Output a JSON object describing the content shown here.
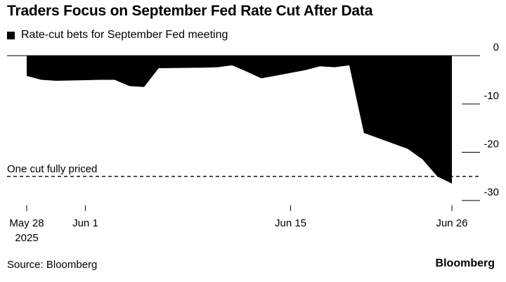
{
  "chart_data": {
    "type": "area",
    "title": "Traders Focus on September Fed Rate Cut After Data",
    "legend": "Rate-cut bets for September Fed meeting",
    "x_dates": [
      "2025-05-28",
      "2025-05-29",
      "2025-05-30",
      "2025-06-02",
      "2025-06-03",
      "2025-06-04",
      "2025-06-05",
      "2025-06-06",
      "2025-06-09",
      "2025-06-10",
      "2025-06-11",
      "2025-06-12",
      "2025-06-13",
      "2025-06-16",
      "2025-06-17",
      "2025-06-18",
      "2025-06-19",
      "2025-06-20",
      "2025-06-23",
      "2025-06-24",
      "2025-06-25",
      "2025-06-26"
    ],
    "series": [
      {
        "name": "Rate-cut bets for September Fed meeting",
        "values": [
          -4.2,
          -5.0,
          -5.2,
          -5.0,
          -5.0,
          -6.3,
          -6.5,
          -2.6,
          -2.5,
          -2.4,
          -2.0,
          -3.3,
          -4.7,
          -3.0,
          -2.2,
          -2.4,
          -2.0,
          -16.0,
          -19.3,
          -21.5,
          -25.0,
          -26.5
        ]
      }
    ],
    "xticks": [
      {
        "date": "2025-05-28",
        "label": "May 28",
        "sublabel": "2025"
      },
      {
        "date": "2025-06-01",
        "label": "Jun 1",
        "sublabel": ""
      },
      {
        "date": "2025-06-15",
        "label": "Jun 15",
        "sublabel": ""
      },
      {
        "date": "2025-06-26",
        "label": "Jun 26",
        "sublabel": ""
      }
    ],
    "yticks": [
      0,
      -10,
      -20,
      -30
    ],
    "ylim": [
      -31,
      2.5
    ],
    "reference_line": {
      "value": -25,
      "label": "One cut fully priced"
    },
    "colors": {
      "fill": "#000000",
      "reference": "#000000"
    }
  },
  "footer": {
    "source": "Source: Bloomberg",
    "brand": "Bloomberg"
  }
}
